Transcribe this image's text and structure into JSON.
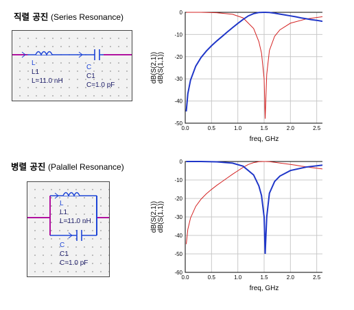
{
  "sections": [
    {
      "title_ko": "직렬 공진",
      "title_en": "(Series Resonance)",
      "inductor": {
        "type": "L",
        "name": "L1",
        "value": "L=11.0 nH"
      },
      "capacitor": {
        "type": "C",
        "name": "C1",
        "value": "C=1.0 pF"
      }
    },
    {
      "title_ko": "병렬 공진",
      "title_en": "(Palallel Resonance)",
      "inductor": {
        "type": "L",
        "name": "L1",
        "value": "L=11.0 nH"
      },
      "capacitor": {
        "type": "C",
        "name": "C1",
        "value": "C=1.0 pF"
      }
    }
  ],
  "chart_data": [
    {
      "type": "line",
      "title": "",
      "xlabel": "freq, GHz",
      "ylabel_s21": "dB(S(2,1))",
      "ylabel_s11": "dB(S(1,1))",
      "xlim": [
        0,
        3
      ],
      "ylim": [
        -50,
        0
      ],
      "xticks": [
        "0.0",
        "0.5",
        "1.0",
        "1.5",
        "2.0",
        "2.5",
        "3.0"
      ],
      "yticks": [
        "0",
        "-10",
        "-20",
        "-30",
        "-40",
        "-50"
      ],
      "series": [
        {
          "name": "dB(S(2,1))",
          "color": "#1f36c8",
          "x": [
            0.02,
            0.05,
            0.1,
            0.2,
            0.3,
            0.4,
            0.5,
            0.6,
            0.7,
            0.8,
            0.9,
            1.0,
            1.1,
            1.2,
            1.3,
            1.4,
            1.5,
            1.52,
            1.6,
            1.7,
            1.8,
            1.9,
            2.0,
            2.1,
            2.2,
            2.3,
            2.4,
            2.5,
            2.6,
            2.7,
            2.8,
            2.9,
            3.0
          ],
          "y": [
            -44.7,
            -36.7,
            -30.6,
            -24.3,
            -20.4,
            -17.5,
            -15.1,
            -12.9,
            -10.9,
            -8.9,
            -6.9,
            -5.0,
            -3.2,
            -1.6,
            -0.6,
            -0.1,
            0.0,
            0.0,
            -0.1,
            -0.4,
            -0.8,
            -1.2,
            -1.6,
            -2.0,
            -2.5,
            -2.9,
            -3.3,
            -3.6,
            -4.0,
            -4.3,
            -4.6,
            -4.9,
            -5.2
          ]
        },
        {
          "name": "dB(S(1,1))",
          "color": "#d42020",
          "x": [
            0.02,
            0.3,
            0.6,
            0.9,
            1.1,
            1.3,
            1.4,
            1.45,
            1.5,
            1.52,
            1.55,
            1.6,
            1.7,
            1.8,
            2.0,
            2.3,
            2.6,
            3.0
          ],
          "y": [
            0.0,
            0.0,
            -0.2,
            -0.9,
            -2.5,
            -7.3,
            -13.2,
            -18.4,
            -30.0,
            -48.0,
            -28.0,
            -17.2,
            -10.8,
            -7.9,
            -4.9,
            -3.0,
            -2.0,
            -1.3
          ]
        }
      ]
    },
    {
      "type": "line",
      "title": "",
      "xlabel": "freq, GHz",
      "ylabel_s21": "dB(S(2,1))",
      "ylabel_s11": "dB(S(1,1))",
      "xlim": [
        0,
        3
      ],
      "ylim": [
        -60,
        0
      ],
      "xticks": [
        "0.0",
        "0.5",
        "1.0",
        "1.5",
        "2.0",
        "2.5",
        "3.0"
      ],
      "yticks": [
        "0",
        "-10",
        "-20",
        "-30",
        "-40",
        "-50",
        "-60"
      ],
      "series": [
        {
          "name": "dB(S(2,1))",
          "color": "#1f36c8",
          "x": [
            0.02,
            0.3,
            0.6,
            0.9,
            1.1,
            1.3,
            1.4,
            1.45,
            1.5,
            1.52,
            1.55,
            1.6,
            1.7,
            1.8,
            2.0,
            2.3,
            2.6,
            3.0
          ],
          "y": [
            0.0,
            0.0,
            -0.2,
            -0.9,
            -2.5,
            -7.3,
            -13.2,
            -18.4,
            -30.0,
            -50.0,
            -30.0,
            -17.2,
            -10.8,
            -7.9,
            -4.9,
            -3.0,
            -2.0,
            -1.3
          ]
        },
        {
          "name": "dB(S(1,1))",
          "color": "#d42020",
          "x": [
            0.02,
            0.05,
            0.1,
            0.2,
            0.3,
            0.4,
            0.5,
            0.6,
            0.7,
            0.8,
            0.9,
            1.0,
            1.1,
            1.2,
            1.3,
            1.4,
            1.5,
            1.52,
            1.6,
            1.7,
            1.8,
            1.9,
            2.0,
            2.1,
            2.2,
            2.3,
            2.4,
            2.5,
            2.6,
            2.7,
            2.8,
            2.9,
            3.0
          ],
          "y": [
            -44.7,
            -36.7,
            -30.6,
            -24.3,
            -20.4,
            -17.5,
            -15.1,
            -12.9,
            -10.9,
            -8.9,
            -6.9,
            -5.0,
            -3.2,
            -1.6,
            -0.6,
            -0.1,
            0.0,
            0.0,
            -0.1,
            -0.4,
            -0.8,
            -1.2,
            -1.6,
            -2.0,
            -2.5,
            -2.9,
            -3.3,
            -3.6,
            -4.0,
            -4.3,
            -4.6,
            -4.9,
            -5.2
          ]
        }
      ]
    }
  ]
}
